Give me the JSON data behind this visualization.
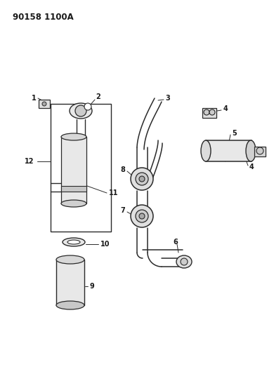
{
  "title": "90158 1100A",
  "bg_color": "#ffffff",
  "line_color": "#2a2a2a",
  "text_color": "#1a1a1a",
  "figsize": [
    3.9,
    5.33
  ],
  "dpi": 100
}
